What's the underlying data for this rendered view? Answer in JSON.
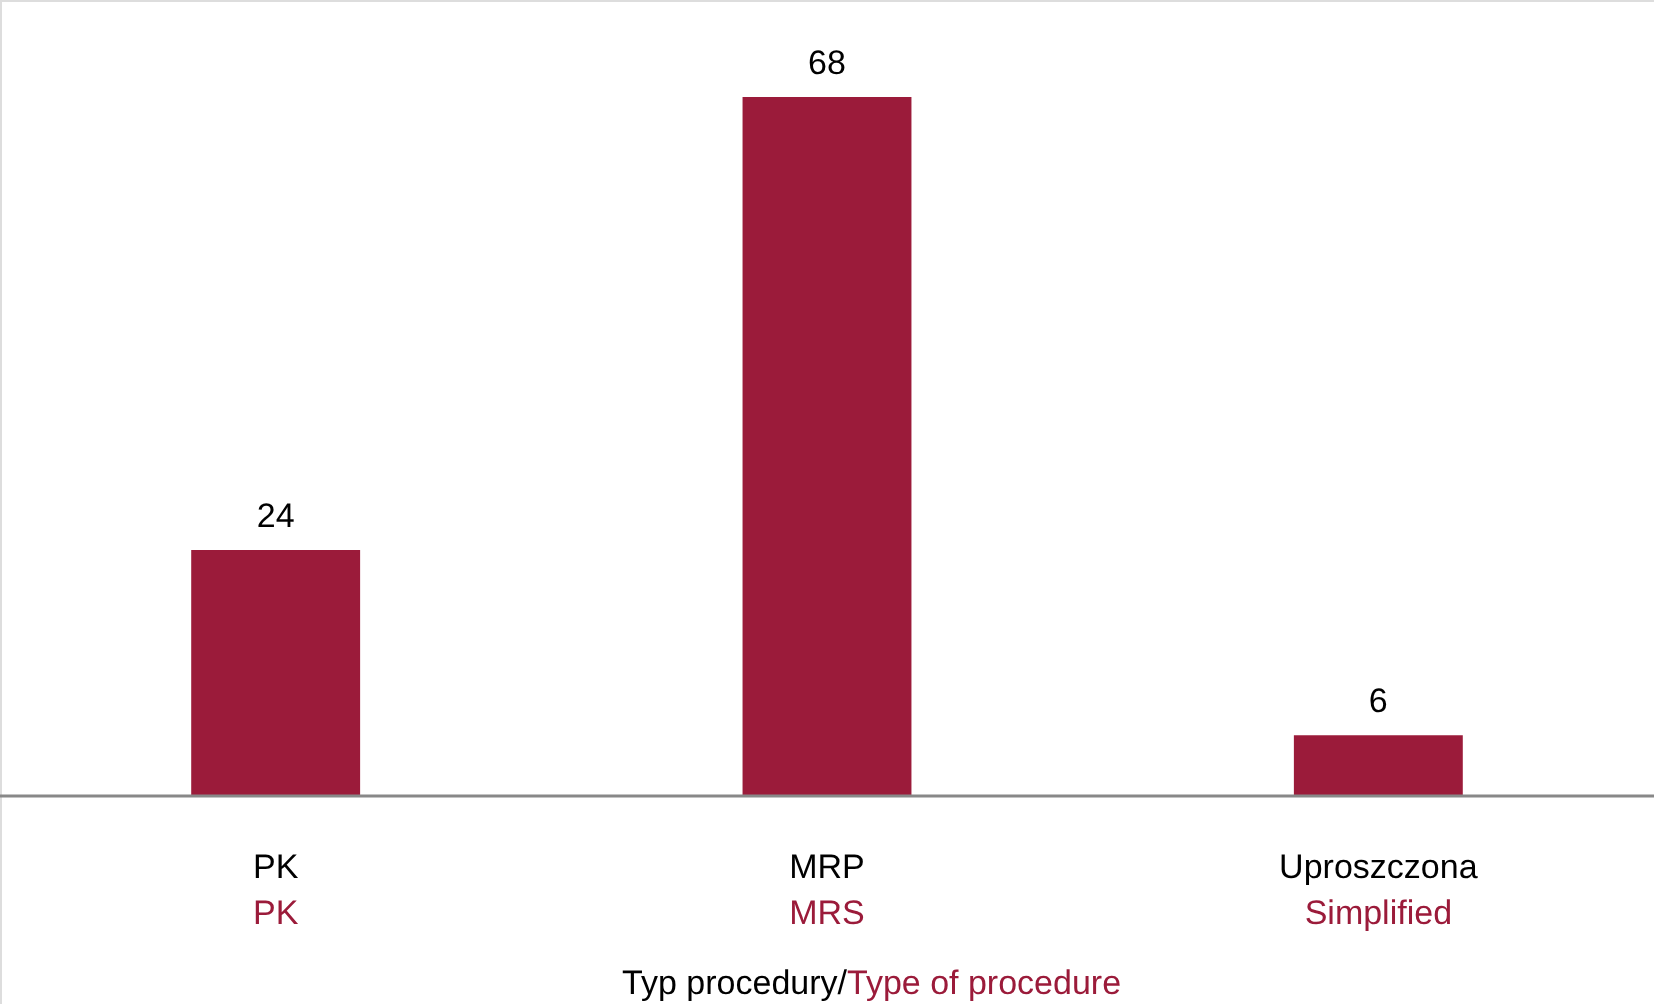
{
  "chart_data": {
    "type": "bar",
    "xlabel": "Typ procedury/Type of procedure",
    "categories": [
      "PK\nPK",
      "MRP\nMRS",
      "Uproszczona\nSimplified"
    ],
    "values": [
      24,
      68,
      6
    ],
    "color": "#9b1b3a",
    "data_labels": true
  }
}
